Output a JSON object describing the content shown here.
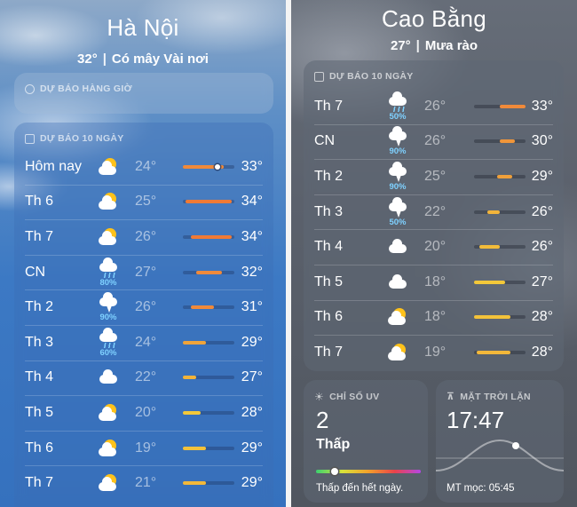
{
  "left": {
    "city": "Hà Nội",
    "temp": "32°",
    "condition": "Có mây Vài nơi",
    "hourly_header": "DỰ BÁO HÀNG GIỜ",
    "forecast_header": "DỰ BÁO 10 NGÀY",
    "days": [
      {
        "day": "Hôm nay",
        "icon": "partly-sunny-icon",
        "pct": "",
        "lo": "24°",
        "hi": "33°",
        "bar": [
          0.0,
          0.8
        ],
        "color": "#f08a3a",
        "now": 0.67
      },
      {
        "day": "Th 6",
        "icon": "partly-sunny-icon",
        "pct": "",
        "lo": "25°",
        "hi": "34°",
        "bar": [
          0.05,
          0.95
        ],
        "color": "#f07a35"
      },
      {
        "day": "Th 7",
        "icon": "partly-sunny-icon",
        "pct": "",
        "lo": "26°",
        "hi": "34°",
        "bar": [
          0.15,
          0.95
        ],
        "color": "#f07a35"
      },
      {
        "day": "CN",
        "icon": "rain-icon",
        "pct": "80%",
        "lo": "27°",
        "hi": "32°",
        "bar": [
          0.25,
          0.75
        ],
        "color": "#f08a3a"
      },
      {
        "day": "Th 2",
        "icon": "thunderstorm-icon",
        "pct": "90%",
        "lo": "26°",
        "hi": "31°",
        "bar": [
          0.15,
          0.6
        ],
        "color": "#f08a3a"
      },
      {
        "day": "Th 3",
        "icon": "rain-icon",
        "pct": "60%",
        "lo": "24°",
        "hi": "29°",
        "bar": [
          0.0,
          0.45
        ],
        "color": "#f0a43a"
      },
      {
        "day": "Th 4",
        "icon": "cloud-icon",
        "pct": "",
        "lo": "22°",
        "hi": "27°",
        "bar": [
          -0.2,
          0.25
        ],
        "color": "#f2b43a"
      },
      {
        "day": "Th 5",
        "icon": "partly-sunny-icon",
        "pct": "",
        "lo": "20°",
        "hi": "28°",
        "bar": [
          -0.4,
          0.35
        ],
        "color": "#f3c83a"
      },
      {
        "day": "Th 6",
        "icon": "partly-sunny-icon",
        "pct": "",
        "lo": "19°",
        "hi": "29°",
        "bar": [
          -0.5,
          0.45
        ],
        "color": "#f3c23a"
      },
      {
        "day": "Th 7",
        "icon": "partly-sunny-icon",
        "pct": "",
        "lo": "21°",
        "hi": "29°",
        "bar": [
          -0.3,
          0.45
        ],
        "color": "#f3b83a"
      }
    ]
  },
  "right": {
    "city": "Cao Bằng",
    "temp": "27°",
    "condition": "Mưa rào",
    "forecast_header": "DỰ BÁO 10 NGÀY",
    "days": [
      {
        "day": "Th 7",
        "icon": "rain-icon",
        "pct": "50%",
        "lo": "26°",
        "hi": "33°",
        "bar": [
          0.5,
          1.0
        ],
        "color": "#f08a3a"
      },
      {
        "day": "CN",
        "icon": "thunderstorm-icon",
        "pct": "90%",
        "lo": "26°",
        "hi": "30°",
        "bar": [
          0.5,
          0.8
        ],
        "color": "#f0963a"
      },
      {
        "day": "Th 2",
        "icon": "thunderstorm-icon",
        "pct": "90%",
        "lo": "25°",
        "hi": "29°",
        "bar": [
          0.45,
          0.75
        ],
        "color": "#f0a03a"
      },
      {
        "day": "Th 3",
        "icon": "thunderstorm-icon",
        "pct": "50%",
        "lo": "22°",
        "hi": "26°",
        "bar": [
          0.25,
          0.5
        ],
        "color": "#f2b43a"
      },
      {
        "day": "Th 4",
        "icon": "cloud-icon",
        "pct": "",
        "lo": "20°",
        "hi": "26°",
        "bar": [
          0.1,
          0.5
        ],
        "color": "#f2bc3a"
      },
      {
        "day": "Th 5",
        "icon": "cloud-icon",
        "pct": "",
        "lo": "18°",
        "hi": "27°",
        "bar": [
          0.0,
          0.6
        ],
        "color": "#f3c83a"
      },
      {
        "day": "Th 6",
        "icon": "partly-sunny-icon",
        "pct": "",
        "lo": "18°",
        "hi": "28°",
        "bar": [
          0.0,
          0.7
        ],
        "color": "#f3c23a"
      },
      {
        "day": "Th 7",
        "icon": "partly-sunny-icon",
        "pct": "",
        "lo": "19°",
        "hi": "28°",
        "bar": [
          0.05,
          0.7
        ],
        "color": "#f3b83a"
      }
    ],
    "uv": {
      "header": "CHỈ SỐ UV",
      "value": "2",
      "level": "Thấp",
      "note": "Thấp đến hết ngày.",
      "scale_pos": 0.18
    },
    "sunset": {
      "header": "MẶT TRỜI LẶN",
      "time": "17:47",
      "sunrise": "MT mọc: 05:45"
    }
  },
  "colors": {
    "uv_low": "#3bd16f",
    "precip": "#7fd1ff",
    "sun": "#ffc21a"
  }
}
